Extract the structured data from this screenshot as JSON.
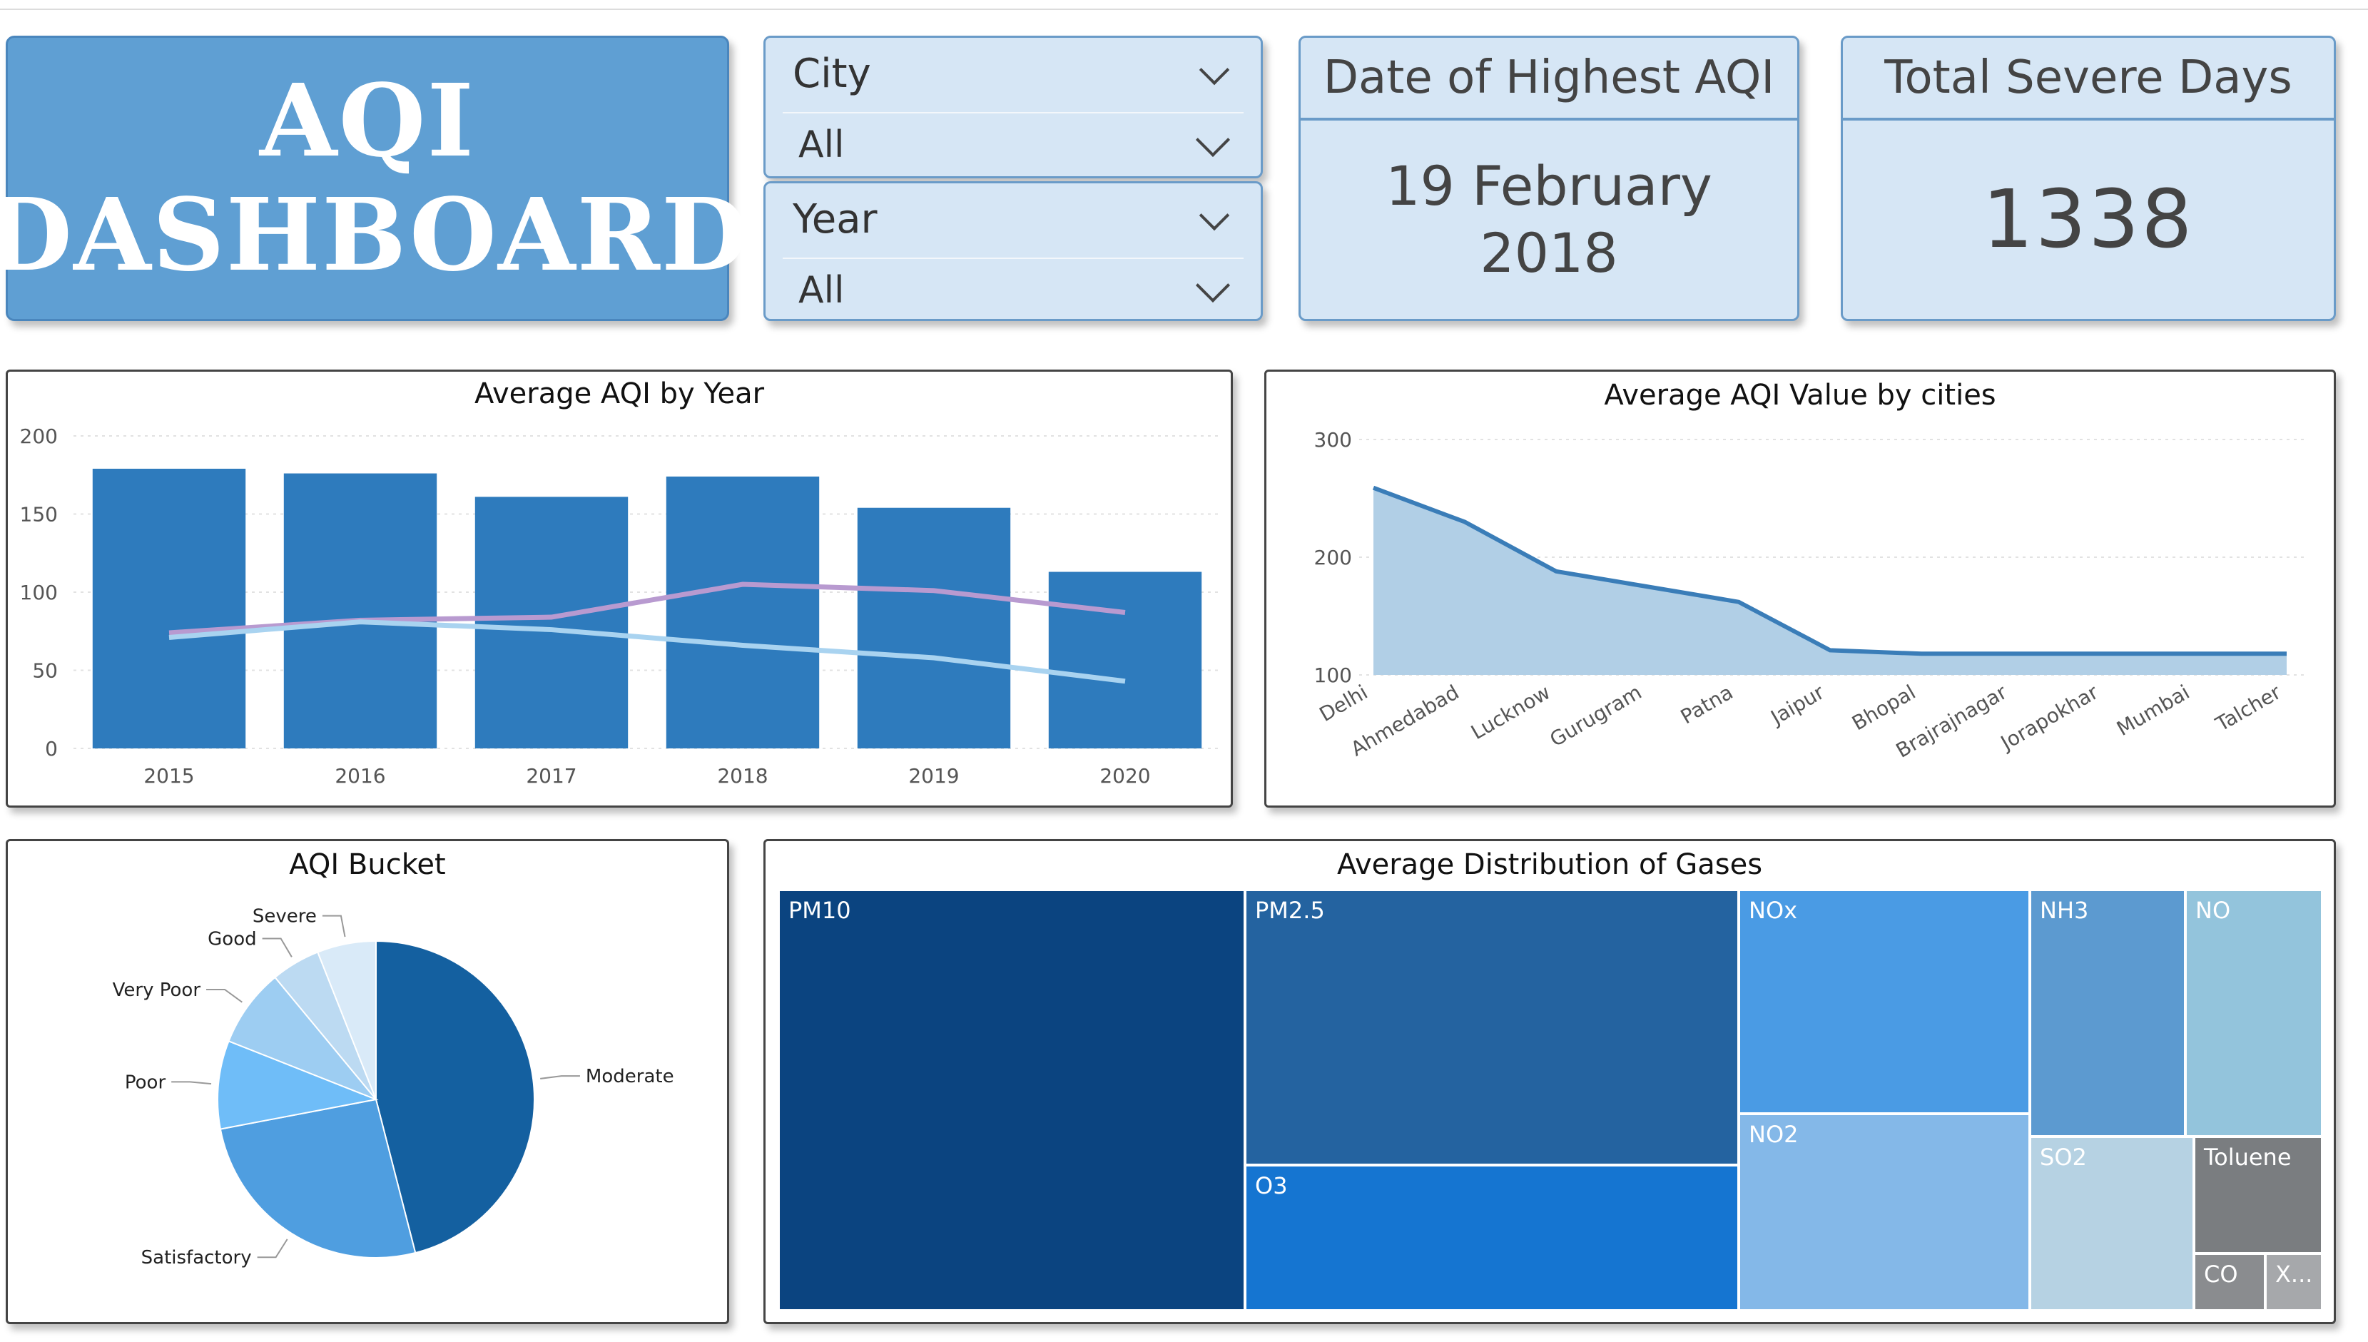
{
  "title": {
    "line1": "AQI",
    "line2": "DASHBOARD"
  },
  "slicers": [
    {
      "label": "City",
      "value": "All"
    },
    {
      "label": "Year",
      "value": "All"
    }
  ],
  "kpis": [
    {
      "label": "Date of Highest AQI",
      "line1": "19 February",
      "line2": "2018"
    },
    {
      "label": "Total Severe Days",
      "value": "1338"
    }
  ],
  "colors": {
    "bar": "#2e7bbd",
    "line_purple": "#b89ad0",
    "line_light": "#a9d3f0",
    "area_fill": "#b1cfe6",
    "area_line": "#3a7db8"
  },
  "chart_data": [
    {
      "type": "bar",
      "title": "Average AQI by Year",
      "categories": [
        "2015",
        "2016",
        "2017",
        "2018",
        "2019",
        "2020"
      ],
      "ylim": [
        0,
        200
      ],
      "yticks": [
        0,
        50,
        100,
        150,
        200
      ],
      "grid": true,
      "series": [
        {
          "values": [
            179,
            176,
            161,
            174,
            154,
            113
          ]
        }
      ],
      "lines": [
        {
          "values": [
            74,
            82,
            84,
            105,
            101,
            87
          ]
        },
        {
          "values": [
            71,
            81,
            76,
            66,
            58,
            43
          ]
        }
      ]
    },
    {
      "type": "area",
      "title": "Average AQI Value by cities",
      "categories": [
        "Delhi",
        "Ahmedabad",
        "Lucknow",
        "Gurugram",
        "Patna",
        "Jaipur",
        "Bhopal",
        "Brajrajnagar",
        "Jorapokhar",
        "Mumbai",
        "Talcher"
      ],
      "values": [
        259,
        230,
        188,
        175,
        162,
        121,
        118,
        118,
        118,
        118,
        118
      ],
      "ylim": [
        100,
        300
      ],
      "yticks": [
        100,
        200,
        300
      ],
      "grid": true
    },
    {
      "type": "pie",
      "title": "AQI Bucket",
      "labels": [
        "Moderate",
        "Satisfactory",
        "Poor",
        "Very Poor",
        "Good",
        "Severe"
      ],
      "values": [
        46,
        26,
        9,
        8,
        5,
        6
      ],
      "colors": [
        "#1460a0",
        "#4f9ee0",
        "#6fbdf8",
        "#9dcdf2",
        "#bcdaf2",
        "#d9eaf8"
      ]
    },
    {
      "type": "treemap",
      "title": "Average Distribution of Gases",
      "labels": [
        "PM10",
        "PM2.5",
        "O3",
        "NOx",
        "NO2",
        "NH3",
        "NO",
        "SO2",
        "Toluene",
        "CO",
        "X..."
      ]
    }
  ]
}
